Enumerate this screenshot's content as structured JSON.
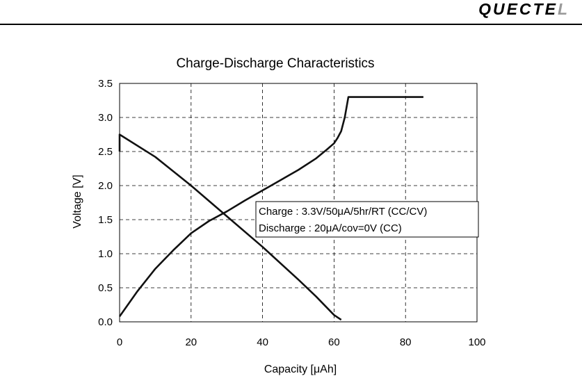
{
  "header": {
    "logo_text": "QUECTEL",
    "logo_main": "QUECTE",
    "logo_accent": "L"
  },
  "chart_data": {
    "type": "line",
    "title": "Charge-Discharge Characteristics",
    "xlabel": "Capacity [μAh]",
    "ylabel": "Voltage [V]",
    "xlim": [
      0,
      100
    ],
    "ylim": [
      0,
      3.5
    ],
    "xticks": [
      "0",
      "20",
      "40",
      "60",
      "80",
      "100"
    ],
    "yticks": [
      "0.0",
      "0.5",
      "1.0",
      "1.5",
      "2.0",
      "2.5",
      "3.0",
      "3.5"
    ],
    "grid": "dashed",
    "legend_box": [
      "Charge : 3.3V/50μA/5hr/RT (CC/CV)",
      "Discharge : 20μA/cov=0V (CC)"
    ],
    "series": [
      {
        "points": [
          [
            0,
            0.08
          ],
          [
            5,
            0.45
          ],
          [
            10,
            0.78
          ],
          [
            15,
            1.05
          ],
          [
            20,
            1.3
          ],
          [
            25,
            1.48
          ],
          [
            30,
            1.62
          ],
          [
            35,
            1.78
          ],
          [
            40,
            1.93
          ],
          [
            45,
            2.08
          ],
          [
            50,
            2.23
          ],
          [
            55,
            2.4
          ],
          [
            58,
            2.53
          ],
          [
            60,
            2.62
          ],
          [
            61,
            2.7
          ],
          [
            62,
            2.8
          ],
          [
            63,
            3.0
          ],
          [
            64,
            3.3
          ],
          [
            85,
            3.3
          ]
        ],
        "color": "#111111"
      },
      {
        "points": [
          [
            0,
            2.5
          ],
          [
            0,
            2.75
          ],
          [
            10,
            2.42
          ],
          [
            20,
            2.0
          ],
          [
            30,
            1.55
          ],
          [
            40,
            1.1
          ],
          [
            50,
            0.62
          ],
          [
            55,
            0.37
          ],
          [
            60,
            0.1
          ],
          [
            62,
            0.03
          ]
        ],
        "color": "#111111"
      }
    ]
  }
}
